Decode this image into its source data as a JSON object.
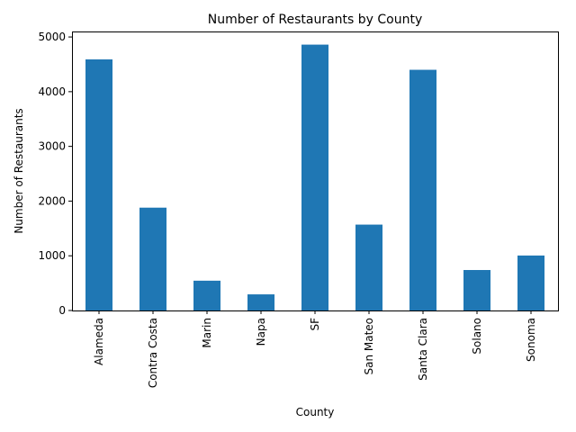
{
  "chart_data": {
    "type": "bar",
    "title": "Number of Restaurants by County",
    "xlabel": "County",
    "ylabel": "Number of Restaurants",
    "categories": [
      "Alameda",
      "Contra Costa",
      "Marin",
      "Napa",
      "SF",
      "San Mateo",
      "Santa Clara",
      "Solano",
      "Sonoma"
    ],
    "values": [
      4590,
      1880,
      545,
      295,
      4860,
      1570,
      4400,
      740,
      1005
    ],
    "ylim": [
      0,
      5100
    ],
    "yticks": [
      0,
      1000,
      2000,
      3000,
      4000,
      5000
    ],
    "bar_color": "#1f77b4",
    "grid": false,
    "legend": "none"
  }
}
